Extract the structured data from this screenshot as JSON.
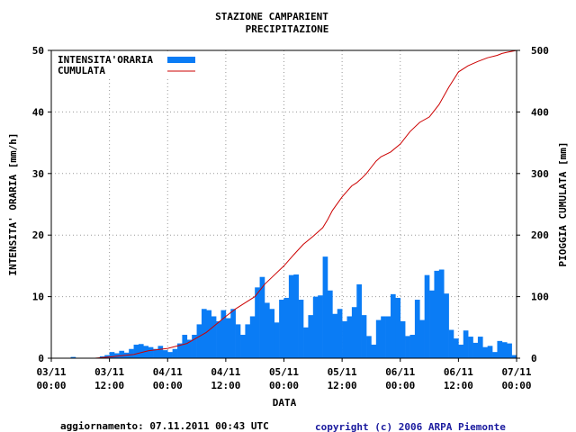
{
  "chart_data": {
    "type": "bar+line",
    "title_line1": "STAZIONE CAMPARIENT",
    "title_line2": "PRECIPITAZIONE",
    "xlabel": "DATA",
    "ylabel_left": "INTENSITA' ORARIA [mm/h]",
    "ylabel_right": "PIOGGIA CUMULATA [mm]",
    "ylim_left": [
      0,
      50
    ],
    "ylim_right": [
      0,
      500
    ],
    "yticks_left": [
      "0",
      "10",
      "20",
      "30",
      "40",
      "50"
    ],
    "yticks_right": [
      "0",
      "100",
      "200",
      "300",
      "400",
      "500"
    ],
    "xticks": [
      {
        "date": "03/11",
        "time": "00:00"
      },
      {
        "date": "03/11",
        "time": "12:00"
      },
      {
        "date": "04/11",
        "time": "00:00"
      },
      {
        "date": "04/11",
        "time": "12:00"
      },
      {
        "date": "05/11",
        "time": "00:00"
      },
      {
        "date": "05/11",
        "time": "12:00"
      },
      {
        "date": "06/11",
        "time": "00:00"
      },
      {
        "date": "06/11",
        "time": "12:00"
      },
      {
        "date": "07/11",
        "time": "00:00"
      }
    ],
    "hours_total": 96,
    "series": [
      {
        "name": "INTENSITA'ORARIA",
        "kind": "bar",
        "color": "#0a7cf5",
        "values": [
          0,
          0,
          0,
          0,
          0.2,
          0,
          0,
          0,
          0,
          0,
          0.3,
          0.5,
          1.0,
          0.8,
          1.2,
          0.9,
          1.5,
          2.2,
          2.3,
          2.0,
          1.8,
          1.5,
          2.0,
          1.3,
          1.0,
          1.5,
          2.4,
          3.8,
          3.0,
          3.8,
          5.5,
          8.0,
          7.8,
          6.8,
          6.0,
          7.8,
          6.5,
          8.0,
          5.5,
          3.8,
          5.5,
          6.8,
          11.5,
          13.2,
          9.0,
          8.0,
          5.8,
          9.5,
          9.8,
          13.5,
          13.6,
          9.5,
          5.0,
          7.0,
          10.0,
          10.2,
          16.5,
          11.0,
          7.2,
          8.0,
          6.0,
          6.8,
          8.3,
          12.0,
          7.0,
          3.6,
          2.2,
          6.2,
          6.8,
          6.8,
          10.4,
          9.8,
          6.0,
          3.6,
          3.8,
          9.5,
          6.2,
          13.5,
          11.0,
          14.2,
          14.4,
          10.5,
          4.6,
          3.2,
          2.2,
          4.5,
          3.5,
          2.5,
          3.5,
          1.8,
          2.0,
          1.0,
          2.8,
          2.6,
          2.4,
          0.5
        ]
      },
      {
        "name": "CUMULATA",
        "kind": "line",
        "color": "#cc0000",
        "points": [
          [
            0,
            0
          ],
          [
            9,
            0
          ],
          [
            12,
            2
          ],
          [
            17,
            6
          ],
          [
            20,
            12
          ],
          [
            24,
            16
          ],
          [
            28,
            24
          ],
          [
            32,
            42
          ],
          [
            36,
            68
          ],
          [
            38,
            80
          ],
          [
            40,
            90
          ],
          [
            42,
            100
          ],
          [
            44,
            120
          ],
          [
            46,
            135
          ],
          [
            48,
            150
          ],
          [
            50,
            168
          ],
          [
            52,
            185
          ],
          [
            54,
            198
          ],
          [
            56,
            212
          ],
          [
            57,
            225
          ],
          [
            58,
            240
          ],
          [
            60,
            262
          ],
          [
            62,
            280
          ],
          [
            63,
            285
          ],
          [
            64,
            292
          ],
          [
            65,
            300
          ],
          [
            66,
            310
          ],
          [
            67,
            320
          ],
          [
            68,
            327
          ],
          [
            70,
            335
          ],
          [
            72,
            348
          ],
          [
            74,
            368
          ],
          [
            76,
            383
          ],
          [
            78,
            392
          ],
          [
            80,
            412
          ],
          [
            82,
            440
          ],
          [
            84,
            465
          ],
          [
            86,
            475
          ],
          [
            88,
            482
          ],
          [
            90,
            488
          ],
          [
            92,
            492
          ],
          [
            93,
            495
          ],
          [
            94,
            497
          ],
          [
            96,
            500
          ]
        ]
      }
    ],
    "legend": {
      "position": "top-left",
      "bar_label": "INTENSITA'ORARIA",
      "line_label": "CUMULATA"
    }
  },
  "footer": {
    "update": "aggiornamento: 07.11.2011 00:43 UTC",
    "copyright": "copyright (c) 2006 ARPA Piemonte"
  },
  "colors": {
    "bar": "#0a7cf5",
    "line": "#cc0000",
    "grid": "#999999",
    "copyright": "#1a1a9e"
  }
}
